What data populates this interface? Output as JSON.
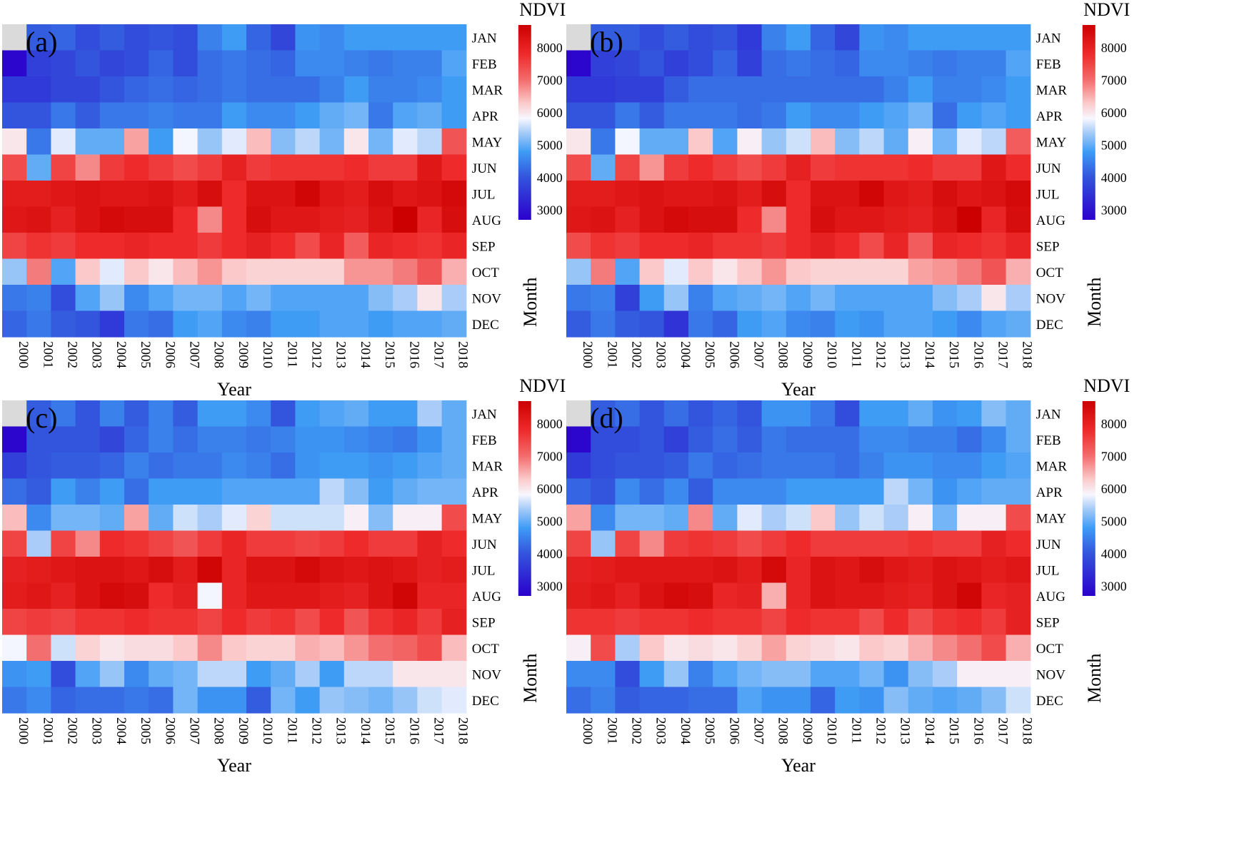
{
  "figure": {
    "xlabel": "Year",
    "ylabel": "Month",
    "colorbar_title": "NDVI",
    "years": [
      "2000",
      "2001",
      "2002",
      "2003",
      "2004",
      "2005",
      "2006",
      "2007",
      "2008",
      "2009",
      "2010",
      "2011",
      "2012",
      "2013",
      "2014",
      "2015",
      "2016",
      "2017",
      "2018"
    ],
    "months": [
      "JAN",
      "FEB",
      "MAR",
      "APR",
      "MAY",
      "JUN",
      "JUL",
      "AUG",
      "SEP",
      "OCT",
      "NOV",
      "DEC"
    ],
    "colorbar_ticks_top": [
      8000,
      7000,
      6000,
      5000,
      4000,
      3000
    ],
    "colorbar_ticks_bottom": [
      8000,
      7000,
      6000,
      5000,
      4000,
      3000
    ],
    "colors": {
      "low": "#2b00cc",
      "mid": "#f7f7ff",
      "high": "#cc0000",
      "missing": "#dadada"
    }
  },
  "chart_data": [
    {
      "type": "heatmap",
      "panel_label": "(a)",
      "xlabel": "Year",
      "ylabel": "Month",
      "colorbar": "NDVI",
      "colorbar_range": [
        2700,
        8700
      ],
      "x": [
        "2000",
        "2001",
        "2002",
        "2003",
        "2004",
        "2005",
        "2006",
        "2007",
        "2008",
        "2009",
        "2010",
        "2011",
        "2012",
        "2013",
        "2014",
        "2015",
        "2016",
        "2017",
        "2018"
      ],
      "y": [
        "JAN",
        "FEB",
        "MAR",
        "APR",
        "MAY",
        "JUN",
        "JUL",
        "AUG",
        "SEP",
        "OCT",
        "NOV",
        "DEC"
      ],
      "values": [
        [
          null,
          4100,
          4200,
          3900,
          4100,
          3900,
          4000,
          3900,
          4500,
          4800,
          4200,
          3800,
          4700,
          4600,
          4800,
          4800,
          4800,
          4800,
          4800
        ],
        [
          2800,
          3700,
          3800,
          4000,
          3800,
          3900,
          4200,
          3900,
          4300,
          4400,
          4300,
          4200,
          4600,
          4600,
          4500,
          4400,
          4500,
          4500,
          4900
        ],
        [
          3600,
          3600,
          3800,
          3800,
          4000,
          4200,
          4300,
          4200,
          4300,
          4400,
          4300,
          4300,
          4300,
          4500,
          4800,
          4500,
          4500,
          4600,
          4800
        ],
        [
          4000,
          4000,
          4400,
          4100,
          4400,
          4400,
          4500,
          4400,
          4400,
          4800,
          4600,
          4600,
          4800,
          5000,
          5100,
          4400,
          4900,
          5000,
          4800
        ],
        [
          6000,
          4400,
          5700,
          5000,
          5000,
          6600,
          4800,
          5800,
          5300,
          5700,
          6400,
          5200,
          5500,
          5100,
          6000,
          5100,
          5700,
          5500,
          7300
        ],
        [
          7400,
          5000,
          7500,
          6800,
          7600,
          7800,
          7600,
          7400,
          7600,
          8000,
          7600,
          7700,
          7700,
          7700,
          7800,
          7600,
          7600,
          8200,
          7800
        ],
        [
          8100,
          8100,
          8200,
          8300,
          8200,
          8200,
          8300,
          8100,
          8400,
          7800,
          8300,
          8300,
          8600,
          8200,
          8100,
          8400,
          8200,
          8300,
          8500
        ],
        [
          8200,
          8300,
          8000,
          8300,
          8500,
          8400,
          8400,
          7800,
          6800,
          7800,
          8400,
          8200,
          8200,
          8100,
          8000,
          8300,
          8700,
          7900,
          8400
        ],
        [
          7500,
          7700,
          7600,
          7800,
          7800,
          7900,
          7800,
          7800,
          7600,
          7800,
          8000,
          7800,
          7400,
          7900,
          7200,
          7900,
          7800,
          7700,
          7900
        ],
        [
          5300,
          6900,
          4900,
          6300,
          5700,
          6300,
          6000,
          6400,
          6700,
          6300,
          6200,
          6200,
          6200,
          6200,
          6700,
          6700,
          6900,
          7300,
          6500
        ],
        [
          4400,
          4500,
          3900,
          4900,
          5300,
          4600,
          4900,
          5100,
          5100,
          4900,
          5100,
          4900,
          4900,
          4900,
          4900,
          5200,
          5400,
          6000,
          5400
        ],
        [
          4200,
          4400,
          4100,
          4000,
          3600,
          4400,
          4300,
          4800,
          4900,
          4600,
          4500,
          4800,
          4800,
          4900,
          4900,
          4800,
          4900,
          4900,
          5000
        ]
      ]
    },
    {
      "type": "heatmap",
      "panel_label": "(b)",
      "xlabel": "Year",
      "ylabel": "Month",
      "colorbar": "NDVI",
      "colorbar_range": [
        2700,
        8700
      ],
      "x": [
        "2000",
        "2001",
        "2002",
        "2003",
        "2004",
        "2005",
        "2006",
        "2007",
        "2008",
        "2009",
        "2010",
        "2011",
        "2012",
        "2013",
        "2014",
        "2015",
        "2016",
        "2017",
        "2018"
      ],
      "y": [
        "JAN",
        "FEB",
        "MAR",
        "APR",
        "MAY",
        "JUN",
        "JUL",
        "AUG",
        "SEP",
        "OCT",
        "NOV",
        "DEC"
      ],
      "values": [
        [
          null,
          4100,
          4100,
          3900,
          4100,
          3900,
          4000,
          3600,
          4500,
          4800,
          4200,
          3800,
          4700,
          4600,
          4800,
          4800,
          4800,
          4800,
          4800
        ],
        [
          2800,
          3700,
          3800,
          4000,
          3700,
          3900,
          4200,
          3700,
          4300,
          4400,
          4300,
          4200,
          4600,
          4600,
          4500,
          4400,
          4500,
          4500,
          4900
        ],
        [
          3600,
          3600,
          3700,
          3700,
          4100,
          4300,
          4300,
          4300,
          4300,
          4300,
          4300,
          4300,
          4300,
          4500,
          4800,
          4500,
          4500,
          4600,
          4800
        ],
        [
          4000,
          4000,
          4400,
          4100,
          4400,
          4400,
          4400,
          4300,
          4400,
          4800,
          4600,
          4600,
          4800,
          4900,
          5100,
          4300,
          4800,
          4900,
          4800
        ],
        [
          6000,
          4400,
          5800,
          5000,
          5000,
          6300,
          4900,
          5900,
          5300,
          5600,
          6400,
          5200,
          5500,
          5000,
          5900,
          5100,
          5700,
          5500,
          7200
        ],
        [
          7400,
          5000,
          7500,
          6700,
          7600,
          7800,
          7600,
          7400,
          7600,
          8000,
          7600,
          7700,
          7700,
          7700,
          7800,
          7600,
          7600,
          8200,
          7800
        ],
        [
          8100,
          8100,
          8200,
          8300,
          8200,
          8200,
          8300,
          8100,
          8400,
          7800,
          8300,
          8300,
          8600,
          8200,
          8100,
          8400,
          8200,
          8300,
          8500
        ],
        [
          8200,
          8300,
          8000,
          8300,
          8500,
          8400,
          8400,
          7800,
          6800,
          7800,
          8400,
          8200,
          8200,
          8100,
          8000,
          8300,
          8700,
          7900,
          8400
        ],
        [
          7400,
          7700,
          7600,
          7800,
          7800,
          7900,
          7700,
          7700,
          7600,
          7800,
          8000,
          7800,
          7400,
          7900,
          7200,
          7900,
          7800,
          7700,
          7900
        ],
        [
          5300,
          6900,
          4900,
          6300,
          5700,
          6300,
          6000,
          6300,
          6700,
          6300,
          6200,
          6200,
          6200,
          6200,
          6600,
          6700,
          6900,
          7300,
          6500
        ],
        [
          4400,
          4500,
          3700,
          4800,
          5300,
          4500,
          4900,
          5000,
          5100,
          4900,
          5100,
          4900,
          4900,
          4900,
          4900,
          5200,
          5400,
          6000,
          5400
        ],
        [
          4100,
          4400,
          4100,
          4000,
          3500,
          4400,
          4200,
          4800,
          4900,
          4600,
          4500,
          4800,
          4700,
          4900,
          4900,
          4800,
          4600,
          4900,
          5000
        ]
      ]
    },
    {
      "type": "heatmap",
      "panel_label": "(c)",
      "xlabel": "Year",
      "ylabel": "Month",
      "colorbar": "NDVI",
      "colorbar_range": [
        2700,
        8700
      ],
      "x": [
        "2000",
        "2001",
        "2002",
        "2003",
        "2004",
        "2005",
        "2006",
        "2007",
        "2008",
        "2009",
        "2010",
        "2011",
        "2012",
        "2013",
        "2014",
        "2015",
        "2016",
        "2017",
        "2018"
      ],
      "y": [
        "JAN",
        "FEB",
        "MAR",
        "APR",
        "MAY",
        "JUN",
        "JUL",
        "AUG",
        "SEP",
        "OCT",
        "NOV",
        "DEC"
      ],
      "values": [
        [
          null,
          4100,
          4400,
          4000,
          4500,
          4100,
          4500,
          4100,
          4800,
          4800,
          4600,
          4000,
          4800,
          4900,
          5000,
          4800,
          4800,
          5400,
          5000
        ],
        [
          2800,
          4000,
          4000,
          4000,
          3800,
          4200,
          4500,
          4300,
          4500,
          4500,
          4400,
          4500,
          4700,
          4700,
          4600,
          4500,
          4400,
          4700,
          5000
        ],
        [
          3700,
          4000,
          4100,
          4100,
          4200,
          4500,
          4300,
          4400,
          4400,
          4600,
          4500,
          4300,
          4700,
          4800,
          4800,
          4700,
          4800,
          4900,
          5000
        ],
        [
          4300,
          4100,
          4800,
          4500,
          4800,
          4300,
          4800,
          4800,
          4800,
          4900,
          4900,
          4900,
          4900,
          5500,
          5200,
          4800,
          5000,
          5100,
          5100
        ],
        [
          6400,
          4600,
          5100,
          5100,
          5000,
          6600,
          5000,
          5600,
          5400,
          5700,
          6200,
          5600,
          5600,
          5600,
          5900,
          5200,
          5900,
          5900,
          7400
        ],
        [
          7500,
          5400,
          7500,
          6800,
          7800,
          7700,
          7500,
          7300,
          7600,
          7900,
          7600,
          7600,
          7500,
          7600,
          7800,
          7600,
          7600,
          8000,
          7800
        ],
        [
          8000,
          8100,
          8200,
          8300,
          8300,
          8200,
          8400,
          8100,
          8600,
          7900,
          8300,
          8300,
          8500,
          8300,
          8200,
          8300,
          8200,
          8000,
          8100
        ],
        [
          8100,
          8200,
          8000,
          8300,
          8500,
          8400,
          7800,
          8000,
          5800,
          7900,
          8200,
          8200,
          8200,
          8100,
          8000,
          8300,
          8600,
          7900,
          7900
        ],
        [
          7500,
          7600,
          7500,
          7700,
          7700,
          7800,
          7700,
          7700,
          7500,
          7800,
          7600,
          7700,
          7400,
          7800,
          7300,
          7700,
          7900,
          7600,
          8000
        ],
        [
          5800,
          7000,
          5600,
          6200,
          6000,
          6100,
          6100,
          6300,
          6800,
          6300,
          6200,
          6200,
          6500,
          6400,
          6700,
          7000,
          7100,
          7400,
          6400
        ],
        [
          4700,
          4800,
          3900,
          4900,
          5300,
          4600,
          5000,
          5100,
          5500,
          5500,
          4800,
          5000,
          5400,
          4800,
          5500,
          5500,
          6000,
          6000,
          6000
        ],
        [
          4400,
          4600,
          4200,
          4300,
          4300,
          4400,
          4300,
          5100,
          4700,
          4700,
          4100,
          5100,
          4800,
          5300,
          5200,
          5100,
          5300,
          5600,
          5700
        ]
      ]
    },
    {
      "type": "heatmap",
      "panel_label": "(d)",
      "xlabel": "Year",
      "ylabel": "Month",
      "colorbar": "NDVI",
      "colorbar_range": [
        2700,
        8700
      ],
      "x": [
        "2000",
        "2001",
        "2002",
        "2003",
        "2004",
        "2005",
        "2006",
        "2007",
        "2008",
        "2009",
        "2010",
        "2011",
        "2012",
        "2013",
        "2014",
        "2015",
        "2016",
        "2017",
        "2018"
      ],
      "y": [
        "JAN",
        "FEB",
        "MAR",
        "APR",
        "MAY",
        "JUN",
        "JUL",
        "AUG",
        "SEP",
        "OCT",
        "NOV",
        "DEC"
      ],
      "values": [
        [
          null,
          4100,
          4300,
          4000,
          4300,
          4000,
          4200,
          4000,
          4700,
          4700,
          4400,
          3900,
          4800,
          4800,
          5000,
          4700,
          4800,
          5200,
          5000
        ],
        [
          2800,
          3900,
          3900,
          4000,
          3700,
          4100,
          4300,
          4100,
          4400,
          4300,
          4300,
          4300,
          4600,
          4600,
          4500,
          4500,
          4300,
          4600,
          5000
        ],
        [
          3600,
          3900,
          4000,
          4000,
          4100,
          4400,
          4200,
          4300,
          4400,
          4400,
          4400,
          4300,
          4500,
          4700,
          4700,
          4600,
          4600,
          4800,
          4900
        ],
        [
          4200,
          4000,
          4600,
          4300,
          4600,
          4100,
          4600,
          4600,
          4600,
          4800,
          4800,
          4800,
          4800,
          5500,
          5100,
          4700,
          4900,
          5000,
          5000
        ],
        [
          6600,
          4600,
          5100,
          5100,
          5000,
          6800,
          5000,
          5700,
          5400,
          5600,
          6300,
          5300,
          5600,
          5400,
          5900,
          5100,
          5900,
          5900,
          7400
        ],
        [
          7500,
          5300,
          7500,
          6800,
          7600,
          7700,
          7600,
          7400,
          7600,
          7800,
          7600,
          7600,
          7600,
          7600,
          7700,
          7600,
          7600,
          8000,
          7800
        ],
        [
          8000,
          8100,
          8200,
          8200,
          8200,
          8200,
          8300,
          8100,
          8500,
          7900,
          8300,
          8200,
          8400,
          8200,
          8100,
          8300,
          8200,
          8100,
          8200
        ],
        [
          8100,
          8200,
          8000,
          8300,
          8500,
          8400,
          7900,
          8000,
          6500,
          7900,
          8300,
          8200,
          8200,
          8100,
          8000,
          8300,
          8600,
          7900,
          8000
        ],
        [
          7700,
          7700,
          7600,
          7700,
          7700,
          7800,
          7700,
          7700,
          7500,
          7800,
          7700,
          7700,
          7400,
          7800,
          7400,
          7700,
          7800,
          7600,
          8000
        ],
        [
          5900,
          7400,
          5400,
          6300,
          6000,
          6100,
          6000,
          6200,
          6600,
          6200,
          6100,
          6000,
          6300,
          6200,
          6500,
          6800,
          7000,
          7400,
          6500
        ],
        [
          4600,
          4600,
          3900,
          4800,
          5300,
          4500,
          4900,
          5100,
          5200,
          5200,
          4900,
          4900,
          5100,
          4700,
          5200,
          5400,
          5900,
          5900,
          5900
        ],
        [
          4300,
          4500,
          4100,
          4200,
          4200,
          4300,
          4300,
          4900,
          4700,
          4700,
          4200,
          4800,
          4700,
          5200,
          5000,
          4900,
          5000,
          5200,
          5600
        ]
      ]
    }
  ]
}
